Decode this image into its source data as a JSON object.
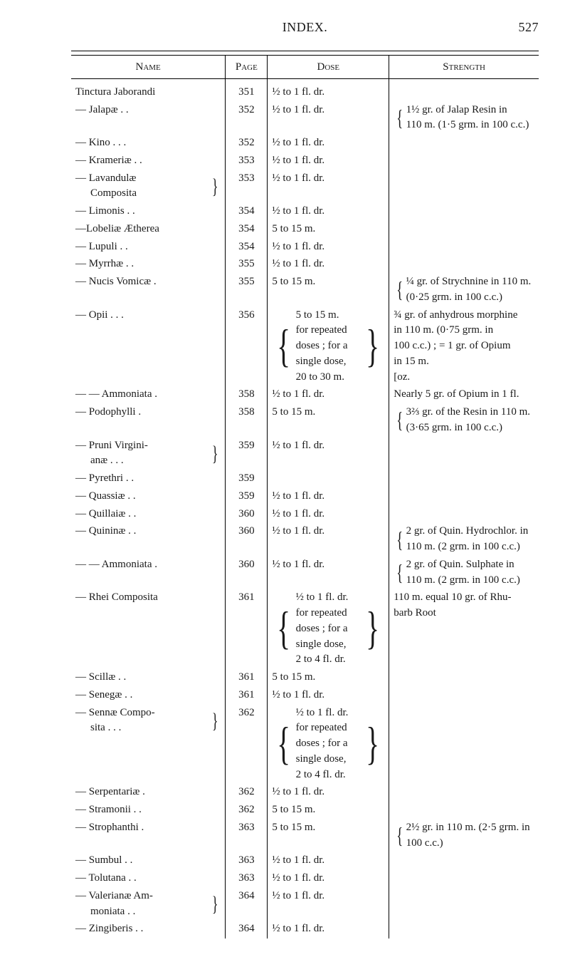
{
  "running_head": {
    "title": "INDEX.",
    "page_number": "527"
  },
  "columns": {
    "name": "Name",
    "page": "Page",
    "dose": "Dose",
    "strength": "Strength"
  },
  "rows": [
    {
      "name": "Tinctura Jaborandi",
      "indent": 0,
      "page": "351",
      "dose": "½ to 1 fl. dr.",
      "strength": ""
    },
    {
      "name": "— Jalapæ   .       .",
      "indent": 0,
      "page": "352",
      "dose": "½ to 1 fl. dr.",
      "strength_brace": {
        "lines": [
          "1½ gr. of Jalap Resin in",
          "  110 m. (1·5 grm. in 100 c.c.)"
        ]
      }
    },
    {
      "name": "— Kino .     .      .",
      "indent": 0,
      "page": "352",
      "dose": "½ to 1 fl. dr.",
      "strength": ""
    },
    {
      "name": "— Krameriæ .     .",
      "indent": 0,
      "page": "353",
      "dose": "½ to 1 fl. dr.",
      "strength": ""
    },
    {
      "name": "— Lavandulæ",
      "indent": 0,
      "continuation": "Composita",
      "brace_right": true,
      "page": "353",
      "dose": "½ to 1 fl. dr.",
      "strength": ""
    },
    {
      "name": "— Limonis  .     .",
      "indent": 0,
      "page": "354",
      "dose": "½ to 1 fl. dr.",
      "strength": ""
    },
    {
      "name": "—Lobeliæ Ætherea",
      "indent": 0,
      "page": "354",
      "dose": "5 to 15 m.",
      "strength": ""
    },
    {
      "name": "— Lupuli     .      .",
      "indent": 0,
      "page": "354",
      "dose": "½ to 1 fl. dr.",
      "strength": ""
    },
    {
      "name": "— Myrrhæ   .     .",
      "indent": 0,
      "page": "355",
      "dose": "½ to 1 fl. dr.",
      "strength": ""
    },
    {
      "name": "— Nucis Vomicæ  .",
      "indent": 0,
      "page": "355",
      "dose": "5 to 15 m.",
      "strength_brace": {
        "lines": [
          "¼ gr. of Strychnine in 110 m.",
          "  (0·25 grm. in 100 c.c.)"
        ]
      }
    },
    {
      "name": "— Opii  .     .      .",
      "indent": 0,
      "page": "356",
      "dose_brace": {
        "lines": [
          "5 to 15 m.",
          "for repeated",
          "doses ; for a",
          "single dose,",
          "20 to 30 m."
        ]
      },
      "strength_lines": [
        "¾ gr. of anhydrous morphine",
        "  in 110 m. (0·75 grm. in",
        "  100 c.c.) ; = 1 gr. of Opium",
        "  in 15 m.",
        "                                   [oz."
      ]
    },
    {
      "name": "— — Ammoniata  .",
      "indent": 0,
      "page": "358",
      "dose": "½ to 1 fl. dr.",
      "strength": "Nearly 5 gr. of Opium in 1 fl."
    },
    {
      "name": "— Podophylli     .",
      "indent": 0,
      "page": "358",
      "dose": "5 to 15 m.",
      "strength_brace": {
        "lines": [
          "3⅔ gr. of the Resin in 110 m.",
          "  (3·65 grm. in 100 c.c.)"
        ]
      }
    },
    {
      "name": "— Pruni  Virgini-",
      "indent": 0,
      "continuation": "anæ  .     .     .",
      "brace_right": true,
      "page": "359",
      "dose": "½ to 1 fl. dr.",
      "strength": ""
    },
    {
      "name": "— Pyrethri  .     .",
      "indent": 0,
      "page": "359",
      "dose": "",
      "strength": ""
    },
    {
      "name": "— Quassiæ  .     .",
      "indent": 0,
      "page": "359",
      "dose": "½ to 1 fl. dr.",
      "strength": ""
    },
    {
      "name": "— Quillaiæ   .     .",
      "indent": 0,
      "page": "360",
      "dose": "½ to 1 fl. dr.",
      "strength": ""
    },
    {
      "name": "— Quininæ  .     .",
      "indent": 0,
      "page": "360",
      "dose": "½ to 1 fl. dr.",
      "strength_brace": {
        "lines": [
          "2 gr. of Quin. Hydrochlor. in",
          "  110 m. (2 grm. in 100 c.c.)"
        ]
      }
    },
    {
      "name": "— — Ammoniata  .",
      "indent": 0,
      "page": "360",
      "dose": "½ to 1 fl. dr.",
      "strength_brace": {
        "lines": [
          "2 gr. of Quin. Sulphate in",
          "  110 m. (2 grm. in 100 c.c.)"
        ]
      }
    },
    {
      "name": "— Rhei Composita",
      "indent": 0,
      "page": "361",
      "dose_brace": {
        "lines": [
          "½ to 1 fl. dr.",
          "for repeated",
          "doses ; for a",
          "single dose,",
          "2 to 4 fl. dr."
        ]
      },
      "strength_lines": [
        "110 m. equal 10 gr. of Rhu-",
        "  barb Root"
      ]
    },
    {
      "name": "— Scillæ     .      .",
      "indent": 0,
      "page": "361",
      "dose": "5 to 15 m.",
      "strength": ""
    },
    {
      "name": "— Senegæ   .      .",
      "indent": 0,
      "page": "361",
      "dose": "½ to 1 fl. dr.",
      "strength": ""
    },
    {
      "name": "— Sennæ  Compo-",
      "indent": 0,
      "continuation": "sita  .     .     .",
      "brace_right": true,
      "page": "362",
      "dose_brace": {
        "lines": [
          "½ to 1 fl. dr.",
          "for repeated",
          "doses ; for a",
          "single dose,",
          "2 to 4 fl. dr."
        ]
      },
      "strength": ""
    },
    {
      "name": "— Serpentariæ   .",
      "indent": 0,
      "page": "362",
      "dose": "½ to 1 fl. dr.",
      "strength": ""
    },
    {
      "name": "— Stramonii .    .",
      "indent": 0,
      "page": "362",
      "dose": "5 to 15 m.",
      "strength": ""
    },
    {
      "name": "— Strophanthi    .",
      "indent": 0,
      "page": "363",
      "dose": "5 to 15 m.",
      "strength_brace": {
        "lines": [
          "2½ gr. in 110 m. (2·5 grm. in",
          "  100 c.c.)"
        ]
      }
    },
    {
      "name": "— Sumbul   .     .",
      "indent": 0,
      "page": "363",
      "dose": "½ to 1 fl. dr.",
      "strength": ""
    },
    {
      "name": "— Tolutana .     .",
      "indent": 0,
      "page": "363",
      "dose": "½ to 1 fl. dr.",
      "strength": ""
    },
    {
      "name": "— Valerianæ  Am-",
      "indent": 0,
      "continuation": "moniata   .     .",
      "brace_right": true,
      "page": "364",
      "dose": "½ to 1 fl. dr.",
      "strength": ""
    },
    {
      "name": "— Zingiberis .    .",
      "indent": 0,
      "page": "364",
      "dose": "½ to 1 fl. dr.",
      "strength": ""
    }
  ]
}
